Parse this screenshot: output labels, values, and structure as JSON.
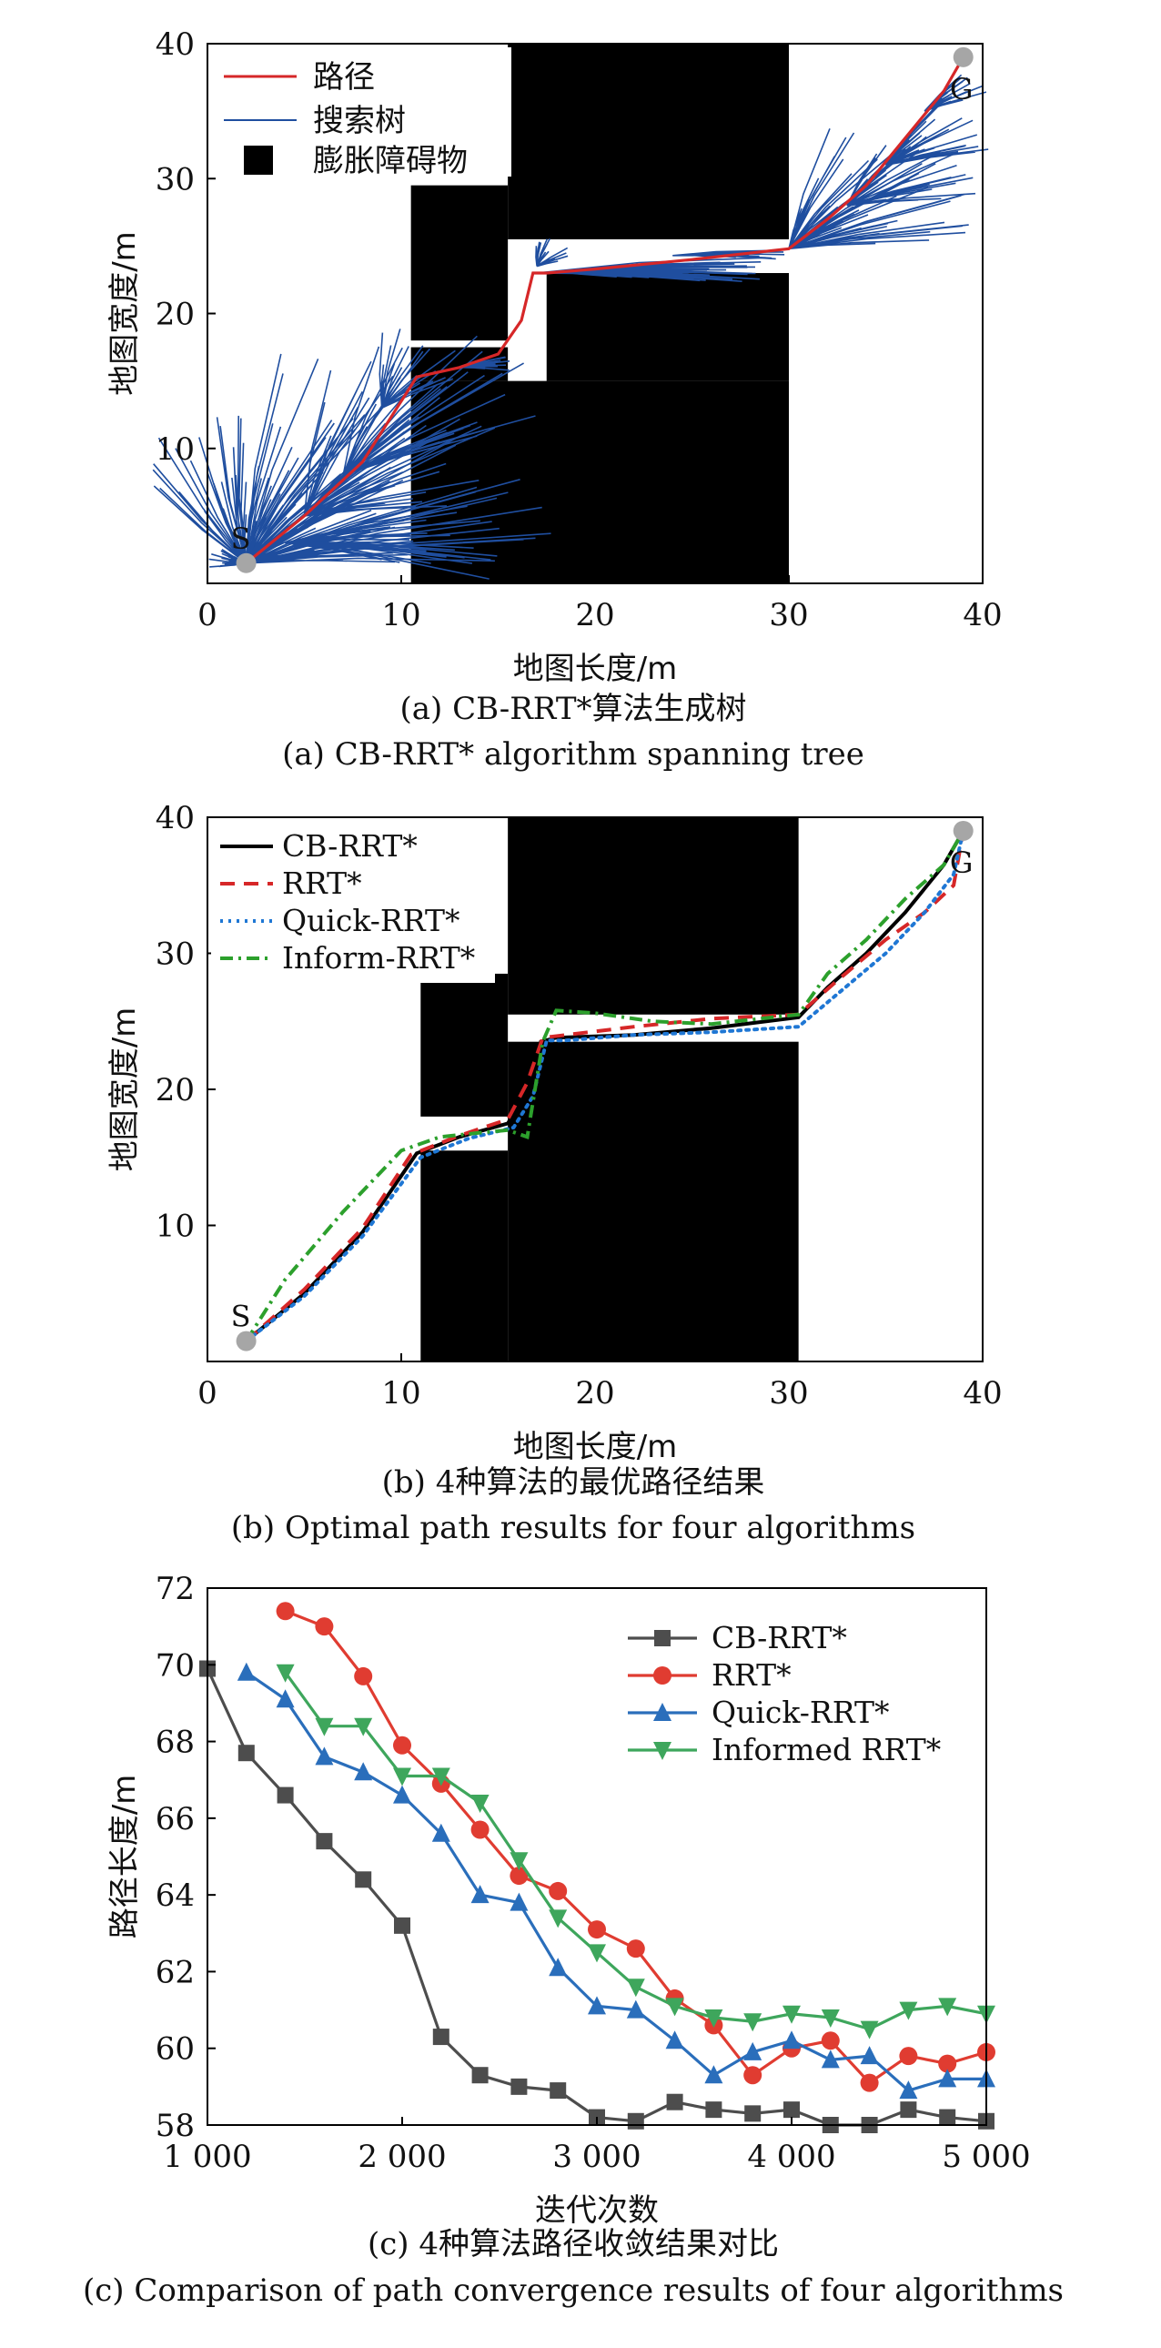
{
  "chart_data": [
    {
      "type": "scatter",
      "subtype": "spanning-tree-map",
      "caption_zh": "(a) CB-RRT*算法生成树",
      "caption_en": "(a) CB-RRT* algorithm spanning tree",
      "xlabel": "地图长度/m",
      "ylabel": "地图宽度/m",
      "xlim": [
        0,
        40
      ],
      "ylim": [
        0,
        40
      ],
      "xticks": [
        "0",
        "10",
        "20",
        "30",
        "40"
      ],
      "yticks": [
        "10",
        "20",
        "30",
        "40"
      ],
      "legend": {
        "placement": "top-left",
        "entries": [
          {
            "label": "路径",
            "color": "#d62728",
            "kind": "line"
          },
          {
            "label": "搜索树",
            "color": "#1f4e9f",
            "kind": "line"
          },
          {
            "label": "膨胀障碍物",
            "color": "#000000",
            "kind": "square"
          }
        ]
      },
      "start": {
        "label": "S",
        "x": 2,
        "y": 1.5
      },
      "goal": {
        "label": "G",
        "x": 39,
        "y": 39
      },
      "obstacles": [
        {
          "x0": 10.5,
          "x1": 15.5,
          "y0": 15,
          "y1": 17.5
        },
        {
          "x0": 10.5,
          "x1": 30,
          "y0": 0,
          "y1": 15
        },
        {
          "x0": 17.5,
          "x1": 30,
          "y0": 15,
          "y1": 23
        },
        {
          "x0": 10.5,
          "x1": 15.5,
          "y0": 18,
          "y1": 29.5
        },
        {
          "x0": 15.5,
          "x1": 30,
          "y0": 25.5,
          "y1": 40
        },
        {
          "x0": 15.5,
          "x1": 17.5,
          "y0": 40,
          "y1": 40
        }
      ],
      "path": {
        "x": [
          2,
          5,
          8,
          10.8,
          13,
          15,
          16.2,
          16.8,
          17.5,
          20,
          25,
          30,
          32,
          34,
          36,
          38,
          39
        ],
        "y": [
          1.5,
          5,
          9,
          15.3,
          16,
          17,
          19.5,
          23,
          23,
          23.3,
          24,
          24.8,
          27,
          29.5,
          33,
          36.5,
          39
        ]
      }
    },
    {
      "type": "line",
      "subtype": "path-map",
      "caption_zh": "(b) 4种算法的最优路径结果",
      "caption_en": "(b) Optimal path results for four algorithms",
      "xlabel": "地图长度/m",
      "ylabel": "地图宽度/m",
      "xlim": [
        0,
        40
      ],
      "ylim": [
        0,
        40
      ],
      "xticks": [
        "0",
        "10",
        "20",
        "30",
        "40"
      ],
      "yticks": [
        "10",
        "20",
        "30",
        "40"
      ],
      "legend": {
        "placement": "top-left"
      },
      "start": {
        "label": "S",
        "x": 2,
        "y": 1.5
      },
      "goal": {
        "label": "G",
        "x": 39,
        "y": 39
      },
      "obstacles": [
        {
          "x0": 11,
          "x1": 15.5,
          "y0": 0,
          "y1": 15.5
        },
        {
          "x0": 15.5,
          "x1": 30.5,
          "y0": 0,
          "y1": 23.5
        },
        {
          "x0": 11,
          "x1": 15.5,
          "y0": 18,
          "y1": 28.5
        },
        {
          "x0": 15.5,
          "x1": 30.5,
          "y0": 25.5,
          "y1": 40
        }
      ],
      "series": [
        {
          "name": "CB-RRT*",
          "color": "#000000",
          "dash": "solid",
          "x": [
            2,
            5,
            8,
            10.8,
            13,
            15.5,
            16.5,
            17.2,
            18,
            22,
            26,
            30.5,
            32,
            34,
            36,
            38,
            39
          ],
          "y": [
            1.5,
            5,
            9.5,
            15.3,
            16.5,
            17.5,
            20,
            23.5,
            23.8,
            24,
            24.5,
            25.3,
            27.5,
            30,
            33,
            36.5,
            39
          ]
        },
        {
          "name": "RRT*",
          "color": "#d62728",
          "dash": "dashed",
          "x": [
            2,
            5,
            8,
            10.5,
            13,
            15.5,
            16.5,
            17.3,
            18.5,
            22,
            26,
            30.5,
            32.5,
            35,
            37,
            38.5,
            39
          ],
          "y": [
            1.5,
            5.3,
            9.8,
            15.2,
            16.6,
            17.8,
            20.5,
            23.8,
            24,
            24.6,
            25.2,
            25.5,
            28,
            31,
            33,
            35,
            39
          ]
        },
        {
          "name": "Quick-RRT*",
          "color": "#1f77d4",
          "dash": "dotted",
          "x": [
            2,
            5,
            8,
            11,
            13.5,
            15.8,
            16.8,
            17.5,
            18.5,
            22,
            26,
            30.5,
            32.5,
            35,
            37,
            38.5,
            39
          ],
          "y": [
            1.5,
            4.8,
            9.2,
            15,
            16.4,
            17.2,
            19.5,
            23.6,
            23.6,
            24,
            24.2,
            24.6,
            27,
            30,
            33,
            35.8,
            39
          ]
        },
        {
          "name": "Inform-RRT*",
          "color": "#2ca02c",
          "dash": "dashdot",
          "x": [
            2,
            4,
            7,
            10,
            12,
            14,
            15.5,
            16.5,
            17.3,
            18,
            20,
            23,
            26,
            30.5,
            32,
            34,
            36,
            38,
            39
          ],
          "y": [
            1.5,
            6,
            11,
            15.5,
            16.5,
            16.8,
            17,
            16.5,
            23.5,
            25.8,
            25.6,
            25,
            24.8,
            25.5,
            28.5,
            31,
            34,
            36.5,
            39
          ]
        }
      ]
    },
    {
      "type": "line",
      "subtype": "convergence",
      "caption_zh": "(c) 4种算法路径收敛结果对比",
      "caption_en": "(c) Comparison of path convergence results of four algorithms",
      "xlabel": "迭代次数",
      "ylabel": "路径长度/m",
      "xlim": [
        1000,
        5000
      ],
      "ylim": [
        58,
        72
      ],
      "xticks": [
        "1 000",
        "2 000",
        "3 000",
        "4 000",
        "5 000"
      ],
      "yticks": [
        "58",
        "60",
        "62",
        "64",
        "66",
        "68",
        "70",
        "72"
      ],
      "legend": {
        "placement": "top-right"
      },
      "series": [
        {
          "name": "CB-RRT*",
          "color": "#4d4d4d",
          "marker": "square",
          "x": [
            1000,
            1200,
            1400,
            1600,
            1800,
            2000,
            2200,
            2400,
            2600,
            2800,
            3000,
            3200,
            3400,
            3600,
            3800,
            4000,
            4200,
            4400,
            4600,
            4800,
            5000
          ],
          "y": [
            69.9,
            67.7,
            66.6,
            65.4,
            64.4,
            63.2,
            60.3,
            59.3,
            59.0,
            58.9,
            58.2,
            58.1,
            58.6,
            58.4,
            58.3,
            58.4,
            58.0,
            58.0,
            58.4,
            58.2,
            58.1
          ]
        },
        {
          "name": "RRT*",
          "color": "#e03c31",
          "marker": "circle",
          "x": [
            1400,
            1600,
            1800,
            2000,
            2200,
            2400,
            2600,
            2800,
            3000,
            3200,
            3400,
            3600,
            3800,
            4000,
            4200,
            4400,
            4600,
            4800,
            5000
          ],
          "y": [
            71.4,
            71.0,
            69.7,
            67.9,
            66.9,
            65.7,
            64.5,
            64.1,
            63.1,
            62.6,
            61.3,
            60.6,
            59.3,
            60.0,
            60.2,
            59.1,
            59.8,
            59.6,
            59.9
          ]
        },
        {
          "name": "Quick-RRT*",
          "color": "#2a6ebb",
          "marker": "triangle-up",
          "x": [
            1200,
            1400,
            1600,
            1800,
            2000,
            2200,
            2400,
            2600,
            2800,
            3000,
            3200,
            3400,
            3600,
            3800,
            4000,
            4200,
            4400,
            4600,
            4800,
            5000
          ],
          "y": [
            69.8,
            69.1,
            67.6,
            67.2,
            66.6,
            65.6,
            64.0,
            63.8,
            62.1,
            61.1,
            61.0,
            60.2,
            59.3,
            59.9,
            60.2,
            59.7,
            59.8,
            58.9,
            59.2,
            59.2
          ]
        },
        {
          "name": "Informed RRT*",
          "color": "#3ea65c",
          "marker": "triangle-down",
          "x": [
            1400,
            1600,
            1800,
            2000,
            2200,
            2400,
            2600,
            2800,
            3000,
            3200,
            3400,
            3600,
            3800,
            4000,
            4200,
            4400,
            4600,
            4800,
            5000
          ],
          "y": [
            69.8,
            68.4,
            68.4,
            67.1,
            67.1,
            66.4,
            64.9,
            63.4,
            62.5,
            61.6,
            61.1,
            60.8,
            60.7,
            60.9,
            60.8,
            60.5,
            61.0,
            61.1,
            60.9
          ]
        }
      ]
    }
  ]
}
